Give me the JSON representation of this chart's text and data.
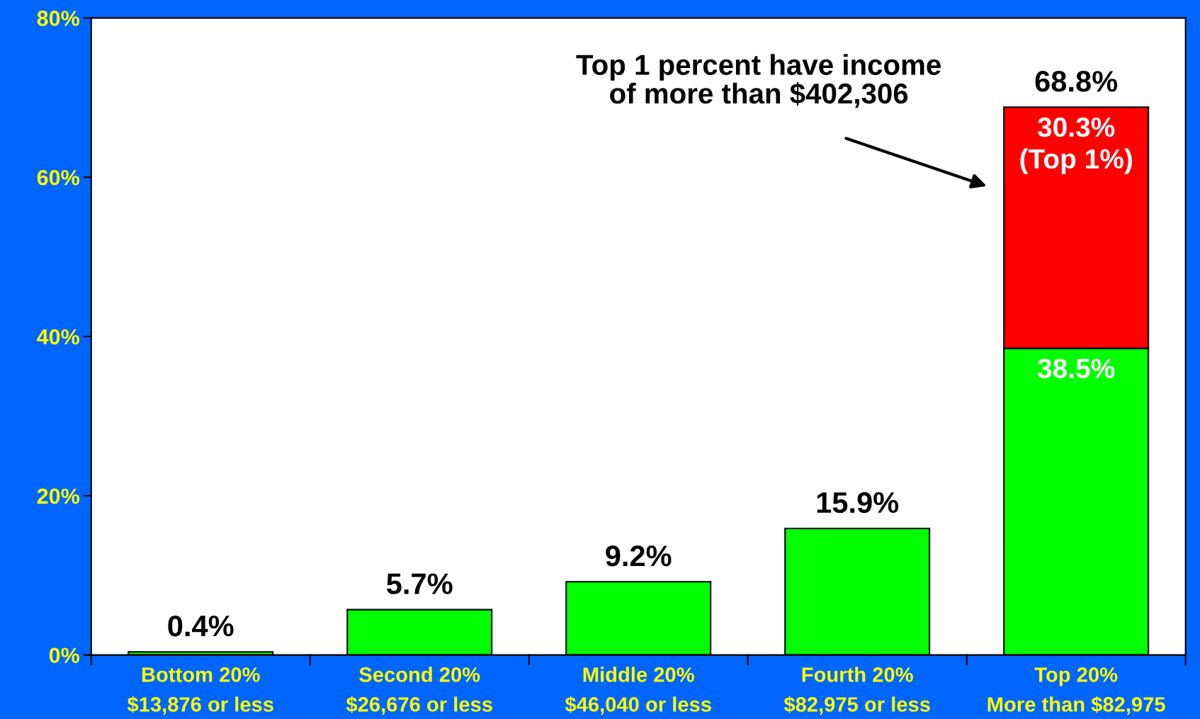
{
  "chart_data": {
    "type": "bar",
    "stacked": true,
    "categories": [
      "Bottom 20%\n$13,876 or less",
      "Second 20%\n$26,676 or less",
      "Middle 20%\n$46,040 or less",
      "Fourth 20%\n$82,975 or less",
      "Top 20%\nMore than $82,975"
    ],
    "series": [
      {
        "color": "#00ff00",
        "values": [
          0.4,
          5.7,
          9.2,
          15.9,
          38.5
        ],
        "value_labels": [
          null,
          null,
          null,
          null,
          "38.5%"
        ]
      },
      {
        "color": "#ff0000",
        "values": [
          null,
          null,
          null,
          null,
          30.3
        ],
        "value_labels": [
          null,
          null,
          null,
          null,
          "30.3%\n(Top 1%)"
        ]
      }
    ],
    "totals": [
      "0.4%",
      "5.7%",
      "9.2%",
      "15.9%",
      "68.8%"
    ],
    "ylim": [
      0,
      80
    ],
    "yticks": [
      {
        "value": 0,
        "label": "0%"
      },
      {
        "value": 20,
        "label": "20%"
      },
      {
        "value": 40,
        "label": "40%"
      },
      {
        "value": 60,
        "label": "60%"
      },
      {
        "value": 80,
        "label": "80%"
      }
    ],
    "grid": false,
    "annotations": [
      "Top 1 percent have income\nof more than $402,306"
    ]
  }
}
